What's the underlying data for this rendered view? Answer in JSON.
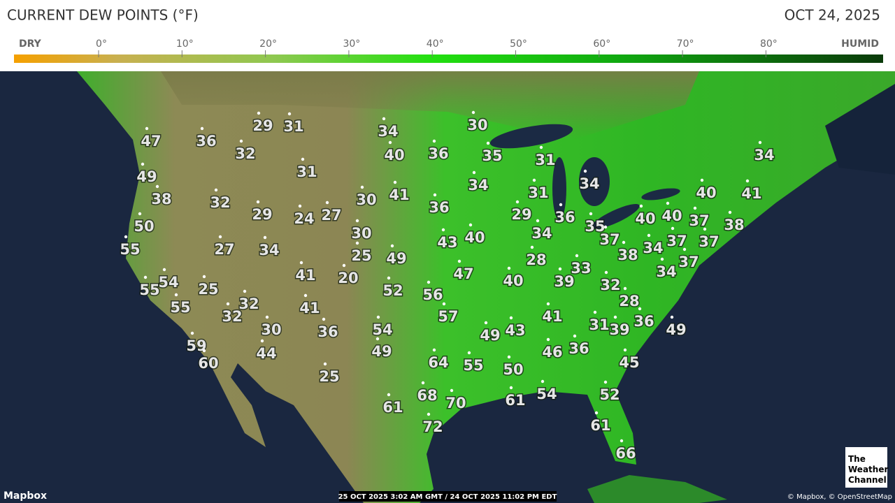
{
  "header": {
    "title": "CURRENT DEW POINTS (°F)",
    "date": "OCT 24, 2025"
  },
  "legend": {
    "labels": [
      "DRY",
      "0°",
      "10°",
      "20°",
      "30°",
      "40°",
      "50°",
      "60°",
      "70°",
      "80°",
      "HUMID"
    ]
  },
  "stations": [
    29,
    31,
    47,
    36,
    32,
    34,
    30,
    40,
    36,
    35,
    31,
    34,
    31,
    49,
    41,
    34,
    31,
    34,
    40,
    41,
    38,
    32,
    30,
    29,
    24,
    27,
    36,
    29,
    36,
    35,
    40,
    40,
    37,
    38,
    50,
    30,
    34,
    43,
    40,
    37,
    37,
    37,
    55,
    27,
    34,
    25,
    49,
    28,
    38,
    34,
    37,
    33,
    34,
    41,
    20,
    47,
    54,
    40,
    39,
    55,
    25,
    52,
    56,
    32,
    32,
    28,
    55,
    41,
    32,
    57,
    41,
    30,
    36,
    54,
    43,
    49,
    31,
    39,
    36,
    49,
    59,
    49,
    46,
    36,
    44,
    60,
    64,
    55,
    45,
    50,
    25,
    54,
    52,
    68,
    70,
    61,
    61,
    72,
    61,
    66
  ],
  "footer": {
    "attribution_left": "Mapbox",
    "timestamp": "25 OCT 2025 3:02 AM GMT / 24 OCT 2025 11:02 PM EDT",
    "attribution_right": "© Mapbox, © OpenStreetMap",
    "logo": [
      "The",
      "Weather",
      "Channel"
    ]
  }
}
